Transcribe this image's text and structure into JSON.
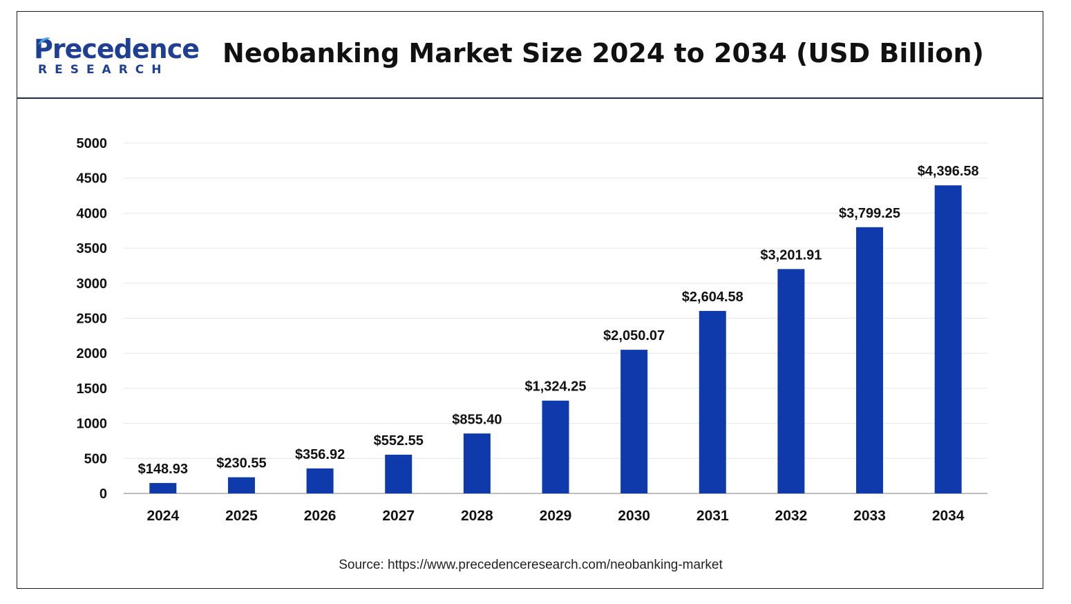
{
  "brand": {
    "name": "Precedence",
    "sub": "RESEARCH",
    "color": "#1f3f94",
    "leaf_color": "#4aa3df"
  },
  "chart_data": {
    "type": "bar",
    "title": "Neobanking Market Size 2024 to 2034 (USD Billion)",
    "xlabel": "",
    "ylabel": "",
    "categories": [
      "2024",
      "2025",
      "2026",
      "2027",
      "2028",
      "2029",
      "2030",
      "2031",
      "2032",
      "2033",
      "2034"
    ],
    "values": [
      148.93,
      230.55,
      356.92,
      552.55,
      855.4,
      1324.25,
      2050.07,
      2604.58,
      3201.91,
      3799.25,
      4396.58
    ],
    "data_labels": [
      "$148.93",
      "$230.55",
      "$356.92",
      "$552.55",
      "$855.40",
      "$1,324.25",
      "$2,050.07",
      "$2,604.58",
      "$3,201.91",
      "$3,799.25",
      "$4,396.58"
    ],
    "ylim": [
      0,
      5000
    ],
    "yticks": [
      0,
      500,
      1000,
      1500,
      2000,
      2500,
      3000,
      3500,
      4000,
      4500,
      5000
    ],
    "grid": true,
    "bar_color": "#0f3aab",
    "gridline_color": "#e6e6e6",
    "baseline_color": "#bdbdbd",
    "source": "Source: https://www.precedenceresearch.com/neobanking-market"
  }
}
